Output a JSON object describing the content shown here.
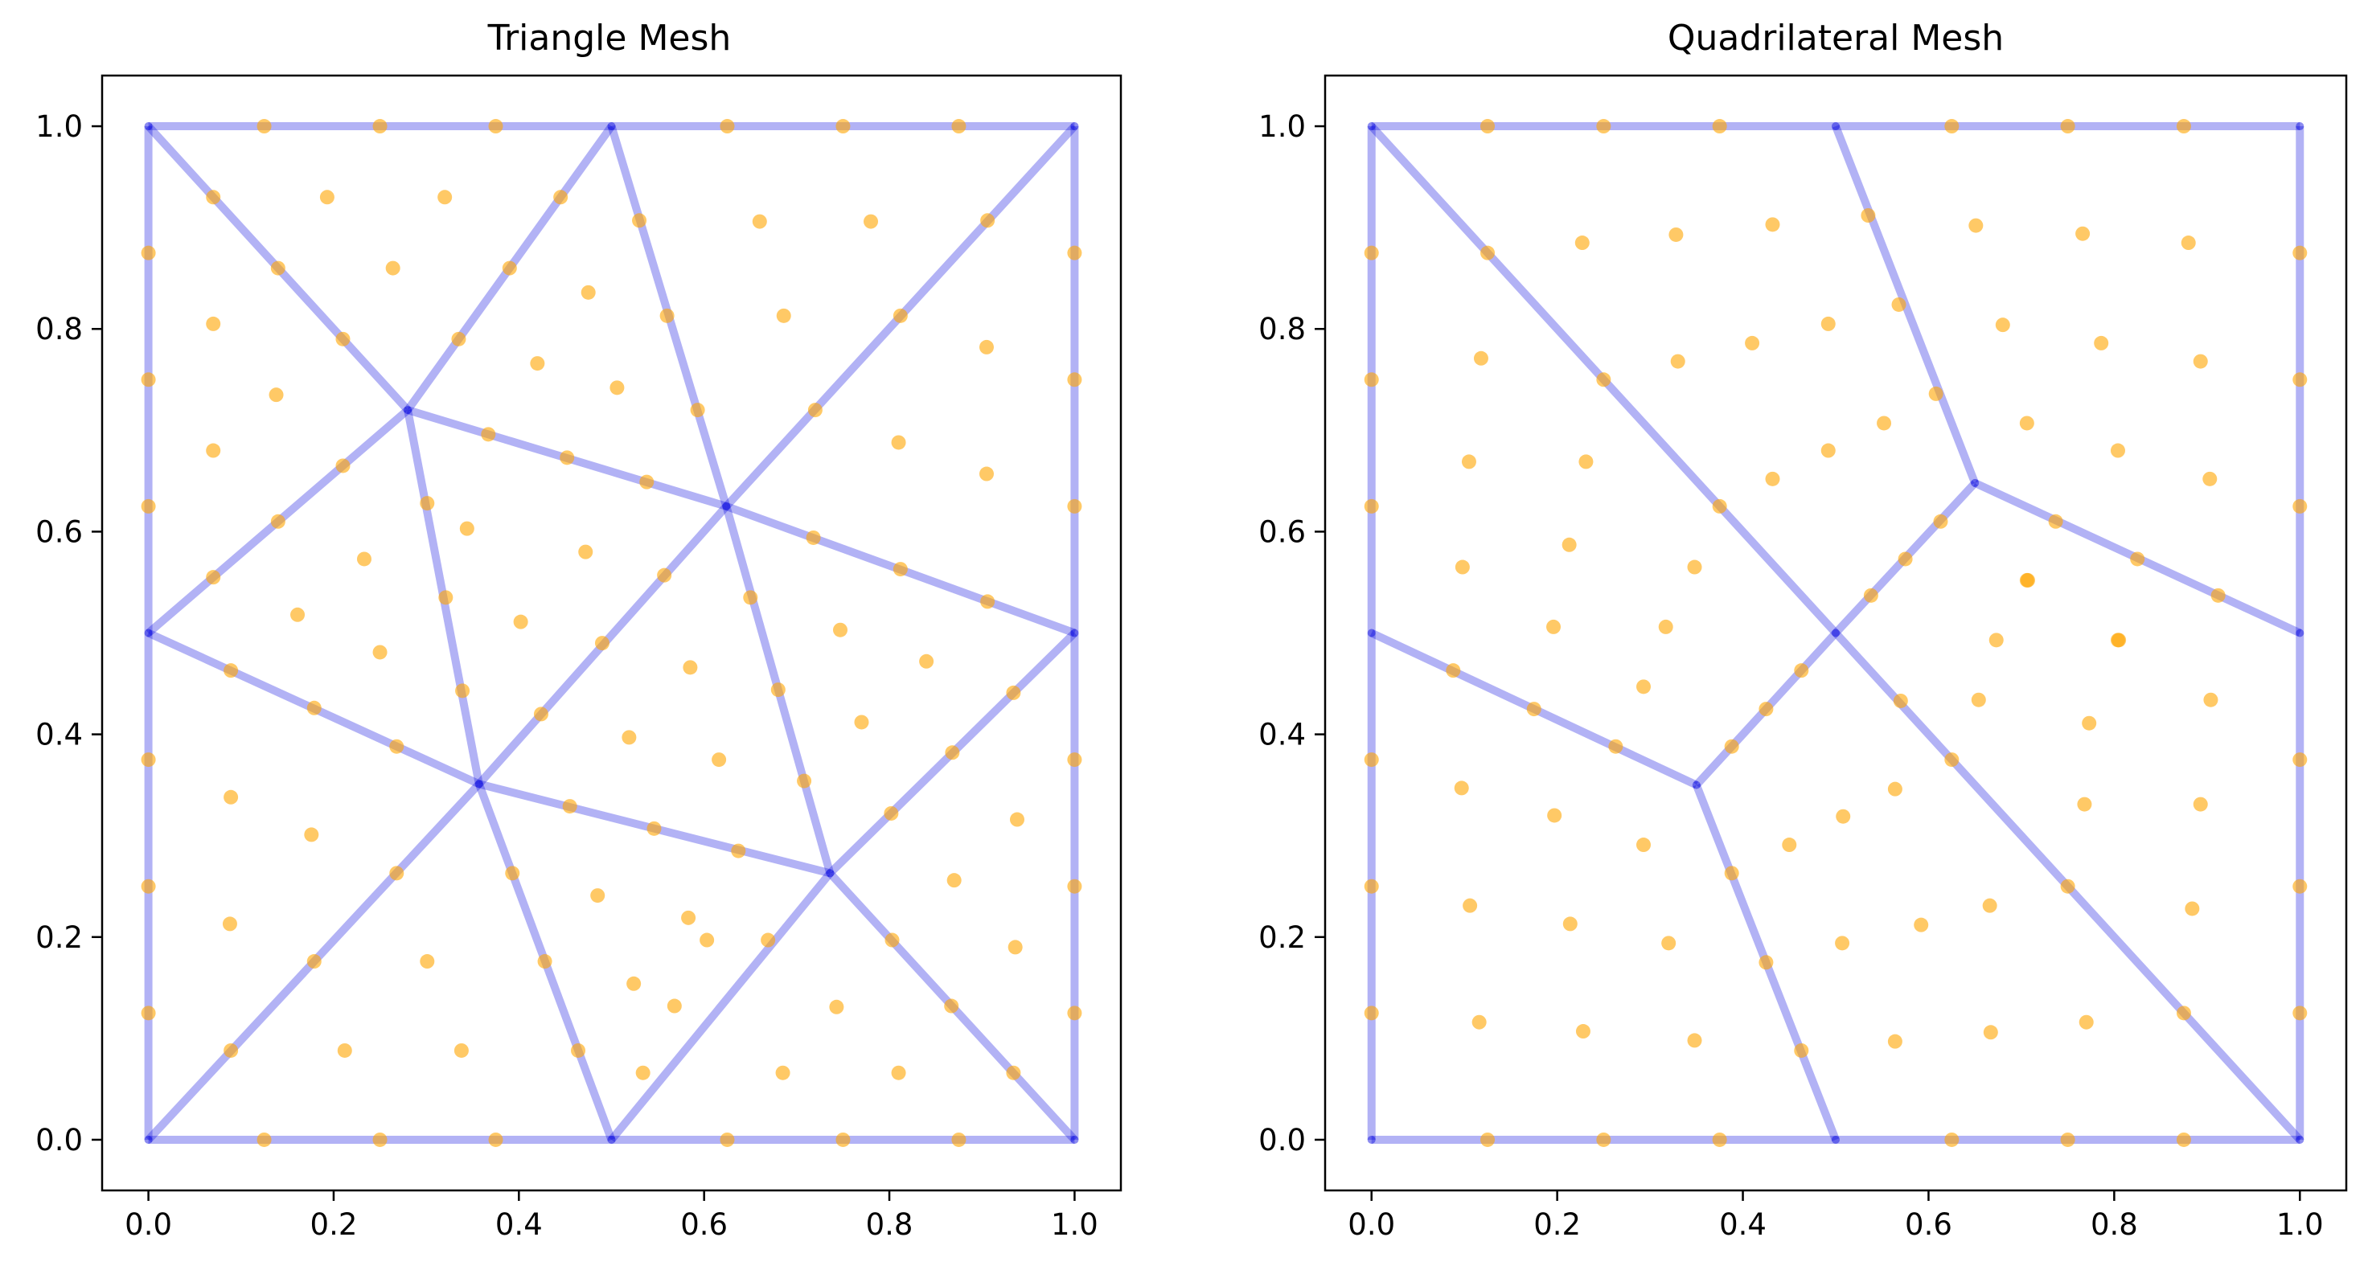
{
  "figure": {
    "background": "#ffffff"
  },
  "style": {
    "edge_color": "#0000dd",
    "edge_opacity": 0.3,
    "node_color": "#ffa500",
    "node_opacity": 0.6,
    "axes_color": "#000000"
  },
  "chart_data": [
    {
      "type": "scatter",
      "title": "Triangle Mesh",
      "xlabel": "",
      "ylabel": "",
      "xlim": [
        -0.05,
        1.05
      ],
      "ylim": [
        -0.05,
        1.05
      ],
      "xticks": [
        "0.0",
        "0.2",
        "0.4",
        "0.6",
        "0.8",
        "1.0"
      ],
      "yticks": [
        "0.0",
        "0.2",
        "0.4",
        "0.6",
        "0.8",
        "1.0"
      ],
      "grid": false,
      "mesh_vertices": [
        [
          0,
          0
        ],
        [
          0.5,
          0
        ],
        [
          1,
          0
        ],
        [
          0,
          0.5
        ],
        [
          0.357,
          0.351
        ],
        [
          0.736,
          0.263
        ],
        [
          0.28,
          0.72
        ],
        [
          0.624,
          0.625
        ],
        [
          1,
          0.5
        ],
        [
          0,
          1
        ],
        [
          0.5,
          1
        ],
        [
          1,
          1
        ]
      ],
      "mesh_edges": [
        [
          0,
          1
        ],
        [
          1,
          2
        ],
        [
          2,
          8
        ],
        [
          8,
          11
        ],
        [
          11,
          10
        ],
        [
          10,
          9
        ],
        [
          9,
          3
        ],
        [
          3,
          0
        ],
        [
          0,
          4
        ],
        [
          4,
          1
        ],
        [
          1,
          5
        ],
        [
          5,
          2
        ],
        [
          5,
          8
        ],
        [
          4,
          5
        ],
        [
          4,
          3
        ],
        [
          4,
          6
        ],
        [
          3,
          6
        ],
        [
          6,
          9
        ],
        [
          6,
          10
        ],
        [
          6,
          7
        ],
        [
          10,
          7
        ],
        [
          7,
          11
        ],
        [
          7,
          8
        ],
        [
          7,
          5
        ],
        [
          7,
          4
        ]
      ],
      "quadrature_points": [
        [
          0.125,
          0
        ],
        [
          0.25,
          0
        ],
        [
          0.375,
          0
        ],
        [
          0.625,
          0
        ],
        [
          0.75,
          0
        ],
        [
          0.875,
          0
        ],
        [
          0.125,
          1
        ],
        [
          0.25,
          1
        ],
        [
          0.375,
          1
        ],
        [
          0.625,
          1
        ],
        [
          0.75,
          1
        ],
        [
          0.875,
          1
        ],
        [
          0,
          0.125
        ],
        [
          0,
          0.25
        ],
        [
          0,
          0.375
        ],
        [
          0,
          0.625
        ],
        [
          0,
          0.75
        ],
        [
          0,
          0.875
        ],
        [
          1,
          0.125
        ],
        [
          1,
          0.25
        ],
        [
          1,
          0.375
        ],
        [
          1,
          0.625
        ],
        [
          1,
          0.75
        ],
        [
          1,
          0.875
        ],
        [
          0.089,
          0.088
        ],
        [
          0.179,
          0.176
        ],
        [
          0.268,
          0.263
        ],
        [
          0.464,
          0.088
        ],
        [
          0.428,
          0.176
        ],
        [
          0.393,
          0.263
        ],
        [
          0.534,
          0.066
        ],
        [
          0.568,
          0.132
        ],
        [
          0.603,
          0.197
        ],
        [
          0.669,
          0.197
        ],
        [
          0.637,
          0.285
        ],
        [
          0.546,
          0.307
        ],
        [
          0.455,
          0.329
        ],
        [
          0.803,
          0.197
        ],
        [
          0.867,
          0.132
        ],
        [
          0.934,
          0.066
        ],
        [
          0.802,
          0.322
        ],
        [
          0.868,
          0.382
        ],
        [
          0.934,
          0.441
        ],
        [
          0.089,
          0.463
        ],
        [
          0.179,
          0.426
        ],
        [
          0.268,
          0.388
        ],
        [
          0.07,
          0.555
        ],
        [
          0.14,
          0.61
        ],
        [
          0.21,
          0.665
        ],
        [
          0.07,
          0.93
        ],
        [
          0.14,
          0.86
        ],
        [
          0.21,
          0.79
        ],
        [
          0.335,
          0.79
        ],
        [
          0.39,
          0.86
        ],
        [
          0.445,
          0.93
        ],
        [
          0.53,
          0.907
        ],
        [
          0.56,
          0.813
        ],
        [
          0.593,
          0.72
        ],
        [
          0.72,
          0.72
        ],
        [
          0.812,
          0.813
        ],
        [
          0.906,
          0.907
        ],
        [
          0.718,
          0.594
        ],
        [
          0.812,
          0.563
        ],
        [
          0.906,
          0.531
        ],
        [
          0.367,
          0.696
        ],
        [
          0.452,
          0.673
        ],
        [
          0.538,
          0.649
        ],
        [
          0.301,
          0.628
        ],
        [
          0.321,
          0.535
        ],
        [
          0.339,
          0.443
        ],
        [
          0.424,
          0.42
        ],
        [
          0.49,
          0.49
        ],
        [
          0.557,
          0.557
        ],
        [
          0.65,
          0.535
        ],
        [
          0.68,
          0.444
        ],
        [
          0.708,
          0.354
        ],
        [
          0.089,
          0.338
        ],
        [
          0.088,
          0.213
        ],
        [
          0.176,
          0.301
        ],
        [
          0.212,
          0.088
        ],
        [
          0.301,
          0.176
        ],
        [
          0.338,
          0.088
        ],
        [
          0.485,
          0.241
        ],
        [
          0.583,
          0.219
        ],
        [
          0.524,
          0.154
        ],
        [
          0.685,
          0.066
        ],
        [
          0.743,
          0.131
        ],
        [
          0.81,
          0.066
        ],
        [
          0.87,
          0.256
        ],
        [
          0.938,
          0.316
        ],
        [
          0.936,
          0.19
        ],
        [
          0.77,
          0.412
        ],
        [
          0.84,
          0.472
        ],
        [
          0.747,
          0.503
        ],
        [
          0.07,
          0.805
        ],
        [
          0.138,
          0.735
        ],
        [
          0.07,
          0.68
        ],
        [
          0.193,
          0.93
        ],
        [
          0.32,
          0.93
        ],
        [
          0.264,
          0.86
        ],
        [
          0.475,
          0.836
        ],
        [
          0.42,
          0.766
        ],
        [
          0.506,
          0.742
        ],
        [
          0.66,
          0.906
        ],
        [
          0.686,
          0.813
        ],
        [
          0.78,
          0.906
        ],
        [
          0.81,
          0.688
        ],
        [
          0.905,
          0.782
        ],
        [
          0.905,
          0.657
        ],
        [
          0.344,
          0.603
        ],
        [
          0.472,
          0.58
        ],
        [
          0.402,
          0.511
        ],
        [
          0.233,
          0.573
        ],
        [
          0.161,
          0.518
        ],
        [
          0.25,
          0.481
        ],
        [
          0.585,
          0.466
        ],
        [
          0.616,
          0.375
        ],
        [
          0.519,
          0.397
        ]
      ]
    },
    {
      "type": "scatter",
      "title": "Quadrilateral Mesh",
      "xlabel": "",
      "ylabel": "",
      "xlim": [
        -0.05,
        1.05
      ],
      "ylim": [
        -0.05,
        1.05
      ],
      "xticks": [
        "0.0",
        "0.2",
        "0.4",
        "0.6",
        "0.8",
        "1.0"
      ],
      "yticks": [
        "0.0",
        "0.2",
        "0.4",
        "0.6",
        "0.8",
        "1.0"
      ],
      "grid": false,
      "mesh_vertices": [
        [
          0,
          0
        ],
        [
          0.5,
          0
        ],
        [
          1,
          0
        ],
        [
          0,
          0.5
        ],
        [
          0.35,
          0.35
        ],
        [
          0.5,
          0.5
        ],
        [
          0.65,
          0.648
        ],
        [
          1,
          0.5
        ],
        [
          0,
          1
        ],
        [
          0.5,
          1
        ],
        [
          1,
          1
        ]
      ],
      "mesh_edges": [
        [
          0,
          1
        ],
        [
          1,
          2
        ],
        [
          2,
          7
        ],
        [
          7,
          10
        ],
        [
          10,
          9
        ],
        [
          9,
          8
        ],
        [
          8,
          3
        ],
        [
          3,
          0
        ],
        [
          3,
          4
        ],
        [
          4,
          1
        ],
        [
          4,
          5
        ],
        [
          5,
          6
        ],
        [
          6,
          9
        ],
        [
          6,
          7
        ],
        [
          8,
          5
        ],
        [
          5,
          2
        ]
      ],
      "quadrature_points": [
        [
          0.125,
          0
        ],
        [
          0.25,
          0
        ],
        [
          0.375,
          0
        ],
        [
          0.625,
          0
        ],
        [
          0.75,
          0
        ],
        [
          0.875,
          0
        ],
        [
          0.125,
          1
        ],
        [
          0.25,
          1
        ],
        [
          0.375,
          1
        ],
        [
          0.625,
          1
        ],
        [
          0.75,
          1
        ],
        [
          0.875,
          1
        ],
        [
          0,
          0.125
        ],
        [
          0,
          0.25
        ],
        [
          0,
          0.375
        ],
        [
          0,
          0.625
        ],
        [
          0,
          0.75
        ],
        [
          0,
          0.875
        ],
        [
          1,
          0.125
        ],
        [
          1,
          0.25
        ],
        [
          1,
          0.375
        ],
        [
          1,
          0.625
        ],
        [
          1,
          0.75
        ],
        [
          1,
          0.875
        ],
        [
          0.088,
          0.463
        ],
        [
          0.175,
          0.425
        ],
        [
          0.263,
          0.388
        ],
        [
          0.463,
          0.088
        ],
        [
          0.425,
          0.175
        ],
        [
          0.388,
          0.263
        ],
        [
          0.388,
          0.388
        ],
        [
          0.425,
          0.425
        ],
        [
          0.463,
          0.463
        ],
        [
          0.538,
          0.537
        ],
        [
          0.575,
          0.573
        ],
        [
          0.613,
          0.61
        ],
        [
          0.535,
          0.912
        ],
        [
          0.568,
          0.824
        ],
        [
          0.608,
          0.736
        ],
        [
          0.737,
          0.61
        ],
        [
          0.825,
          0.573
        ],
        [
          0.912,
          0.537
        ],
        [
          0.125,
          0.875
        ],
        [
          0.25,
          0.75
        ],
        [
          0.375,
          0.625
        ],
        [
          0.625,
          0.375
        ],
        [
          0.75,
          0.25
        ],
        [
          0.875,
          0.125
        ],
        [
          0.116,
          0.116
        ],
        [
          0.228,
          0.107
        ],
        [
          0.348,
          0.098
        ],
        [
          0.106,
          0.231
        ],
        [
          0.214,
          0.213
        ],
        [
          0.32,
          0.194
        ],
        [
          0.097,
          0.347
        ],
        [
          0.197,
          0.32
        ],
        [
          0.293,
          0.291
        ],
        [
          0.507,
          0.194
        ],
        [
          0.592,
          0.212
        ],
        [
          0.666,
          0.231
        ],
        [
          0.564,
          0.097
        ],
        [
          0.667,
          0.106
        ],
        [
          0.77,
          0.116
        ],
        [
          0.508,
          0.319
        ],
        [
          0.564,
          0.346
        ],
        [
          0.45,
          0.291
        ],
        [
          0.884,
          0.228
        ],
        [
          0.768,
          0.331
        ],
        [
          0.893,
          0.331
        ],
        [
          0.654,
          0.434
        ],
        [
          0.673,
          0.493
        ],
        [
          0.773,
          0.411
        ],
        [
          0.804,
          0.493
        ],
        [
          0.706,
          0.552
        ],
        [
          0.904,
          0.434
        ],
        [
          0.098,
          0.565
        ],
        [
          0.196,
          0.506
        ],
        [
          0.213,
          0.587
        ],
        [
          0.105,
          0.669
        ],
        [
          0.231,
          0.669
        ],
        [
          0.118,
          0.771
        ],
        [
          0.317,
          0.506
        ],
        [
          0.348,
          0.565
        ],
        [
          0.293,
          0.447
        ],
        [
          0.227,
          0.885
        ],
        [
          0.328,
          0.893
        ],
        [
          0.432,
          0.903
        ],
        [
          0.33,
          0.768
        ],
        [
          0.41,
          0.786
        ],
        [
          0.492,
          0.805
        ],
        [
          0.432,
          0.652
        ],
        [
          0.492,
          0.68
        ],
        [
          0.552,
          0.707
        ],
        [
          0.651,
          0.902
        ],
        [
          0.766,
          0.894
        ],
        [
          0.88,
          0.885
        ],
        [
          0.68,
          0.804
        ],
        [
          0.786,
          0.786
        ],
        [
          0.893,
          0.768
        ],
        [
          0.706,
          0.707
        ],
        [
          0.804,
          0.68
        ],
        [
          0.903,
          0.652
        ],
        [
          0.707,
          0.552
        ],
        [
          0.805,
          0.493
        ],
        [
          0.57,
          0.433
        ]
      ]
    }
  ]
}
